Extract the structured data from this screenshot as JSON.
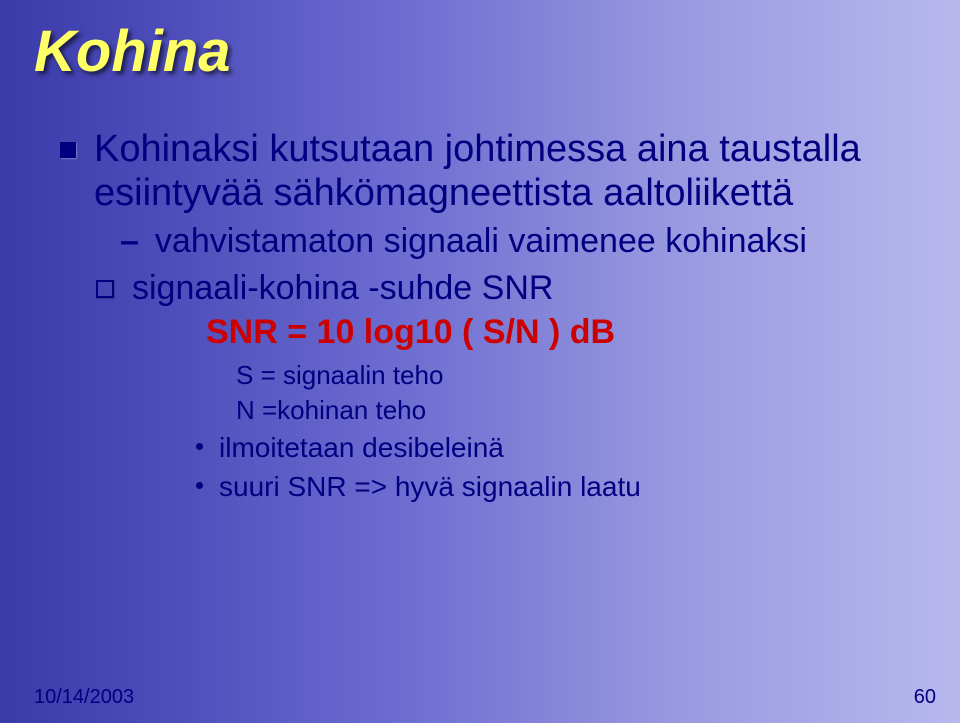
{
  "title": "Kohina",
  "main_bullet": "Kohinaksi kutsutaan johtimessa aina taustalla esiintyvää sähkömagneettista aaltoliikettä",
  "sub_dash": "vahvistamaton signaali vaimenee kohinaksi",
  "snr_line": "signaali-kohina -suhde SNR",
  "formula": "SNR = 10 log10 ( S/N ) dB",
  "s_def": "S = signaalin teho",
  "n_def": "N =kohinan teho",
  "dot1": "ilmoitetaan desibeleinä",
  "dot2": "suuri SNR => hyvä signaalin laatu",
  "footer_date": "10/14/2003",
  "footer_page": "60",
  "colors": {
    "title_color": "#ffff66",
    "body_color": "#000080",
    "formula_color": "#cc0000",
    "bg_left": "#3a3aa8",
    "bg_right": "#b8b8ee"
  },
  "typography": {
    "title_fontsize": 58,
    "body_fontsize": 38,
    "sub_fontsize": 34,
    "formula_fontsize": 34,
    "small_fontsize": 26,
    "footer_fontsize": 20
  }
}
